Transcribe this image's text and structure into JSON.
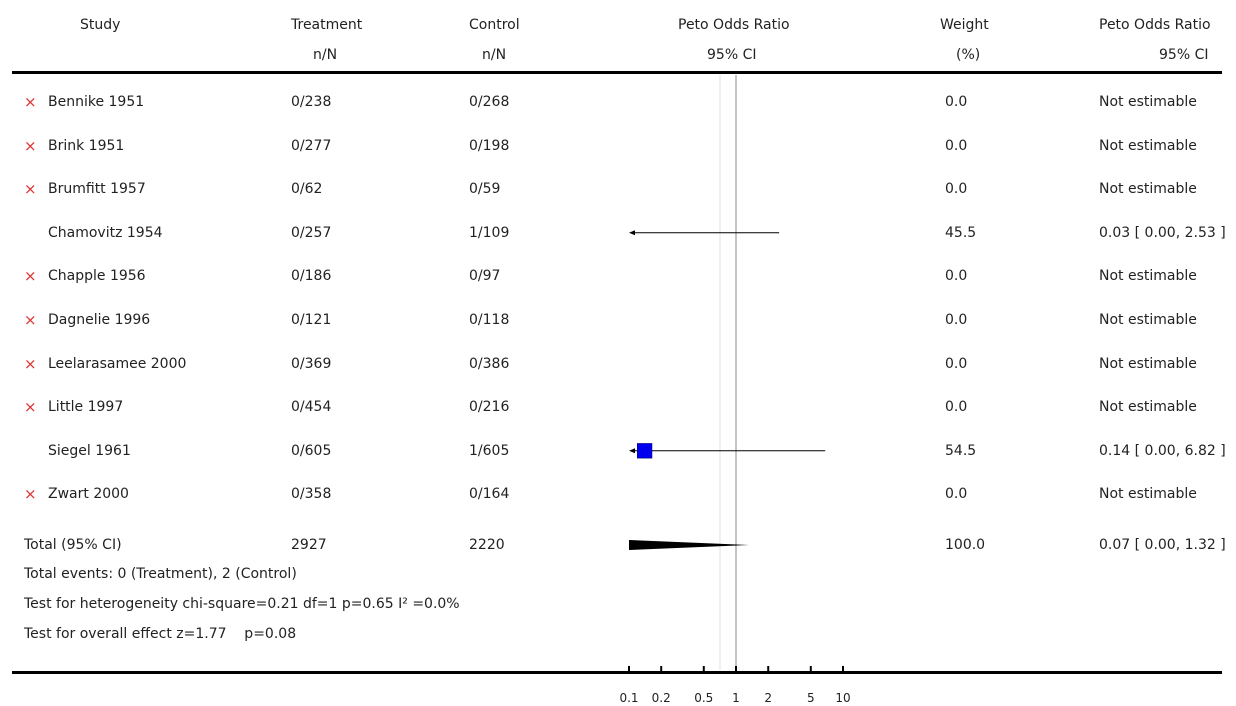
{
  "headers": {
    "study": "Study",
    "treatment": "Treatment",
    "treatment_sub": "n/N",
    "control": "Control",
    "control_sub": "n/N",
    "or": "Peto Odds Ratio",
    "or_sub": "95% CI",
    "weight": "Weight",
    "weight_sub": "(%)",
    "or2": "Peto Odds Ratio",
    "or2_sub": "95% CI"
  },
  "excluded_marker": "×",
  "rows": [
    {
      "study": "Bennike 1951",
      "excluded": true,
      "treatment": "0/238",
      "control": "0/268",
      "weight": "0.0",
      "result": "Not estimable"
    },
    {
      "study": "Brink 1951",
      "excluded": true,
      "treatment": "0/277",
      "control": "0/198",
      "weight": "0.0",
      "result": "Not estimable"
    },
    {
      "study": "Brumfitt 1957",
      "excluded": true,
      "treatment": "0/62",
      "control": "0/59",
      "weight": "0.0",
      "result": "Not estimable"
    },
    {
      "study": "Chamovitz 1954",
      "excluded": false,
      "treatment": "0/257",
      "control": "1/109",
      "weight": "45.5",
      "result": "0.03 [ 0.00, 2.53 ]"
    },
    {
      "study": "Chapple 1956",
      "excluded": true,
      "treatment": "0/186",
      "control": "0/97",
      "weight": "0.0",
      "result": "Not estimable"
    },
    {
      "study": "Dagnelie 1996",
      "excluded": true,
      "treatment": "0/121",
      "control": "0/118",
      "weight": "0.0",
      "result": "Not estimable"
    },
    {
      "study": "Leelarasamee 2000",
      "excluded": true,
      "treatment": "0/369",
      "control": "0/386",
      "weight": "0.0",
      "result": "Not estimable"
    },
    {
      "study": "Little 1997",
      "excluded": true,
      "treatment": "0/454",
      "control": "0/216",
      "weight": "0.0",
      "result": "Not estimable"
    },
    {
      "study": "Siegel 1961",
      "excluded": false,
      "treatment": "0/605",
      "control": "1/605",
      "weight": "54.5",
      "result": "0.14 [ 0.00, 6.82 ]"
    },
    {
      "study": "Zwart 2000",
      "excluded": true,
      "treatment": "0/358",
      "control": "0/164",
      "weight": "0.0",
      "result": "Not estimable"
    }
  ],
  "total": {
    "label": "Total (95% CI)",
    "treatment": "2927",
    "control": "2220",
    "weight": "100.0",
    "result": "0.07 [ 0.00, 1.32 ]"
  },
  "footnotes": [
    "Total events: 0 (Treatment), 2 (Control)",
    "Test for heterogeneity chi-square=0.21 df=1 p=0.65 I² =0.0%",
    "Test for overall effect z=1.77    p=0.08"
  ],
  "colors": {
    "marker": "#0000ee",
    "excluded": "#e03030",
    "line": "#000000",
    "ref": "#888888"
  },
  "chart_data": {
    "type": "forest",
    "scale": "log",
    "xlim": [
      0.1,
      10
    ],
    "ticks": [
      0.1,
      0.2,
      0.5,
      1,
      2,
      5,
      10
    ],
    "tick_labels": [
      "0.1",
      "0.2",
      "0.5",
      "1",
      "2",
      "5",
      "10"
    ],
    "reference_line": 1,
    "studies": [
      {
        "name": "Chamovitz 1954",
        "or": 0.03,
        "lower": 0.0,
        "upper": 2.53,
        "weight": 45.5
      },
      {
        "name": "Siegel 1961",
        "or": 0.14,
        "lower": 0.0,
        "upper": 6.82,
        "weight": 54.5
      }
    ],
    "pooled": {
      "or": 0.07,
      "lower": 0.0,
      "upper": 1.32
    }
  }
}
